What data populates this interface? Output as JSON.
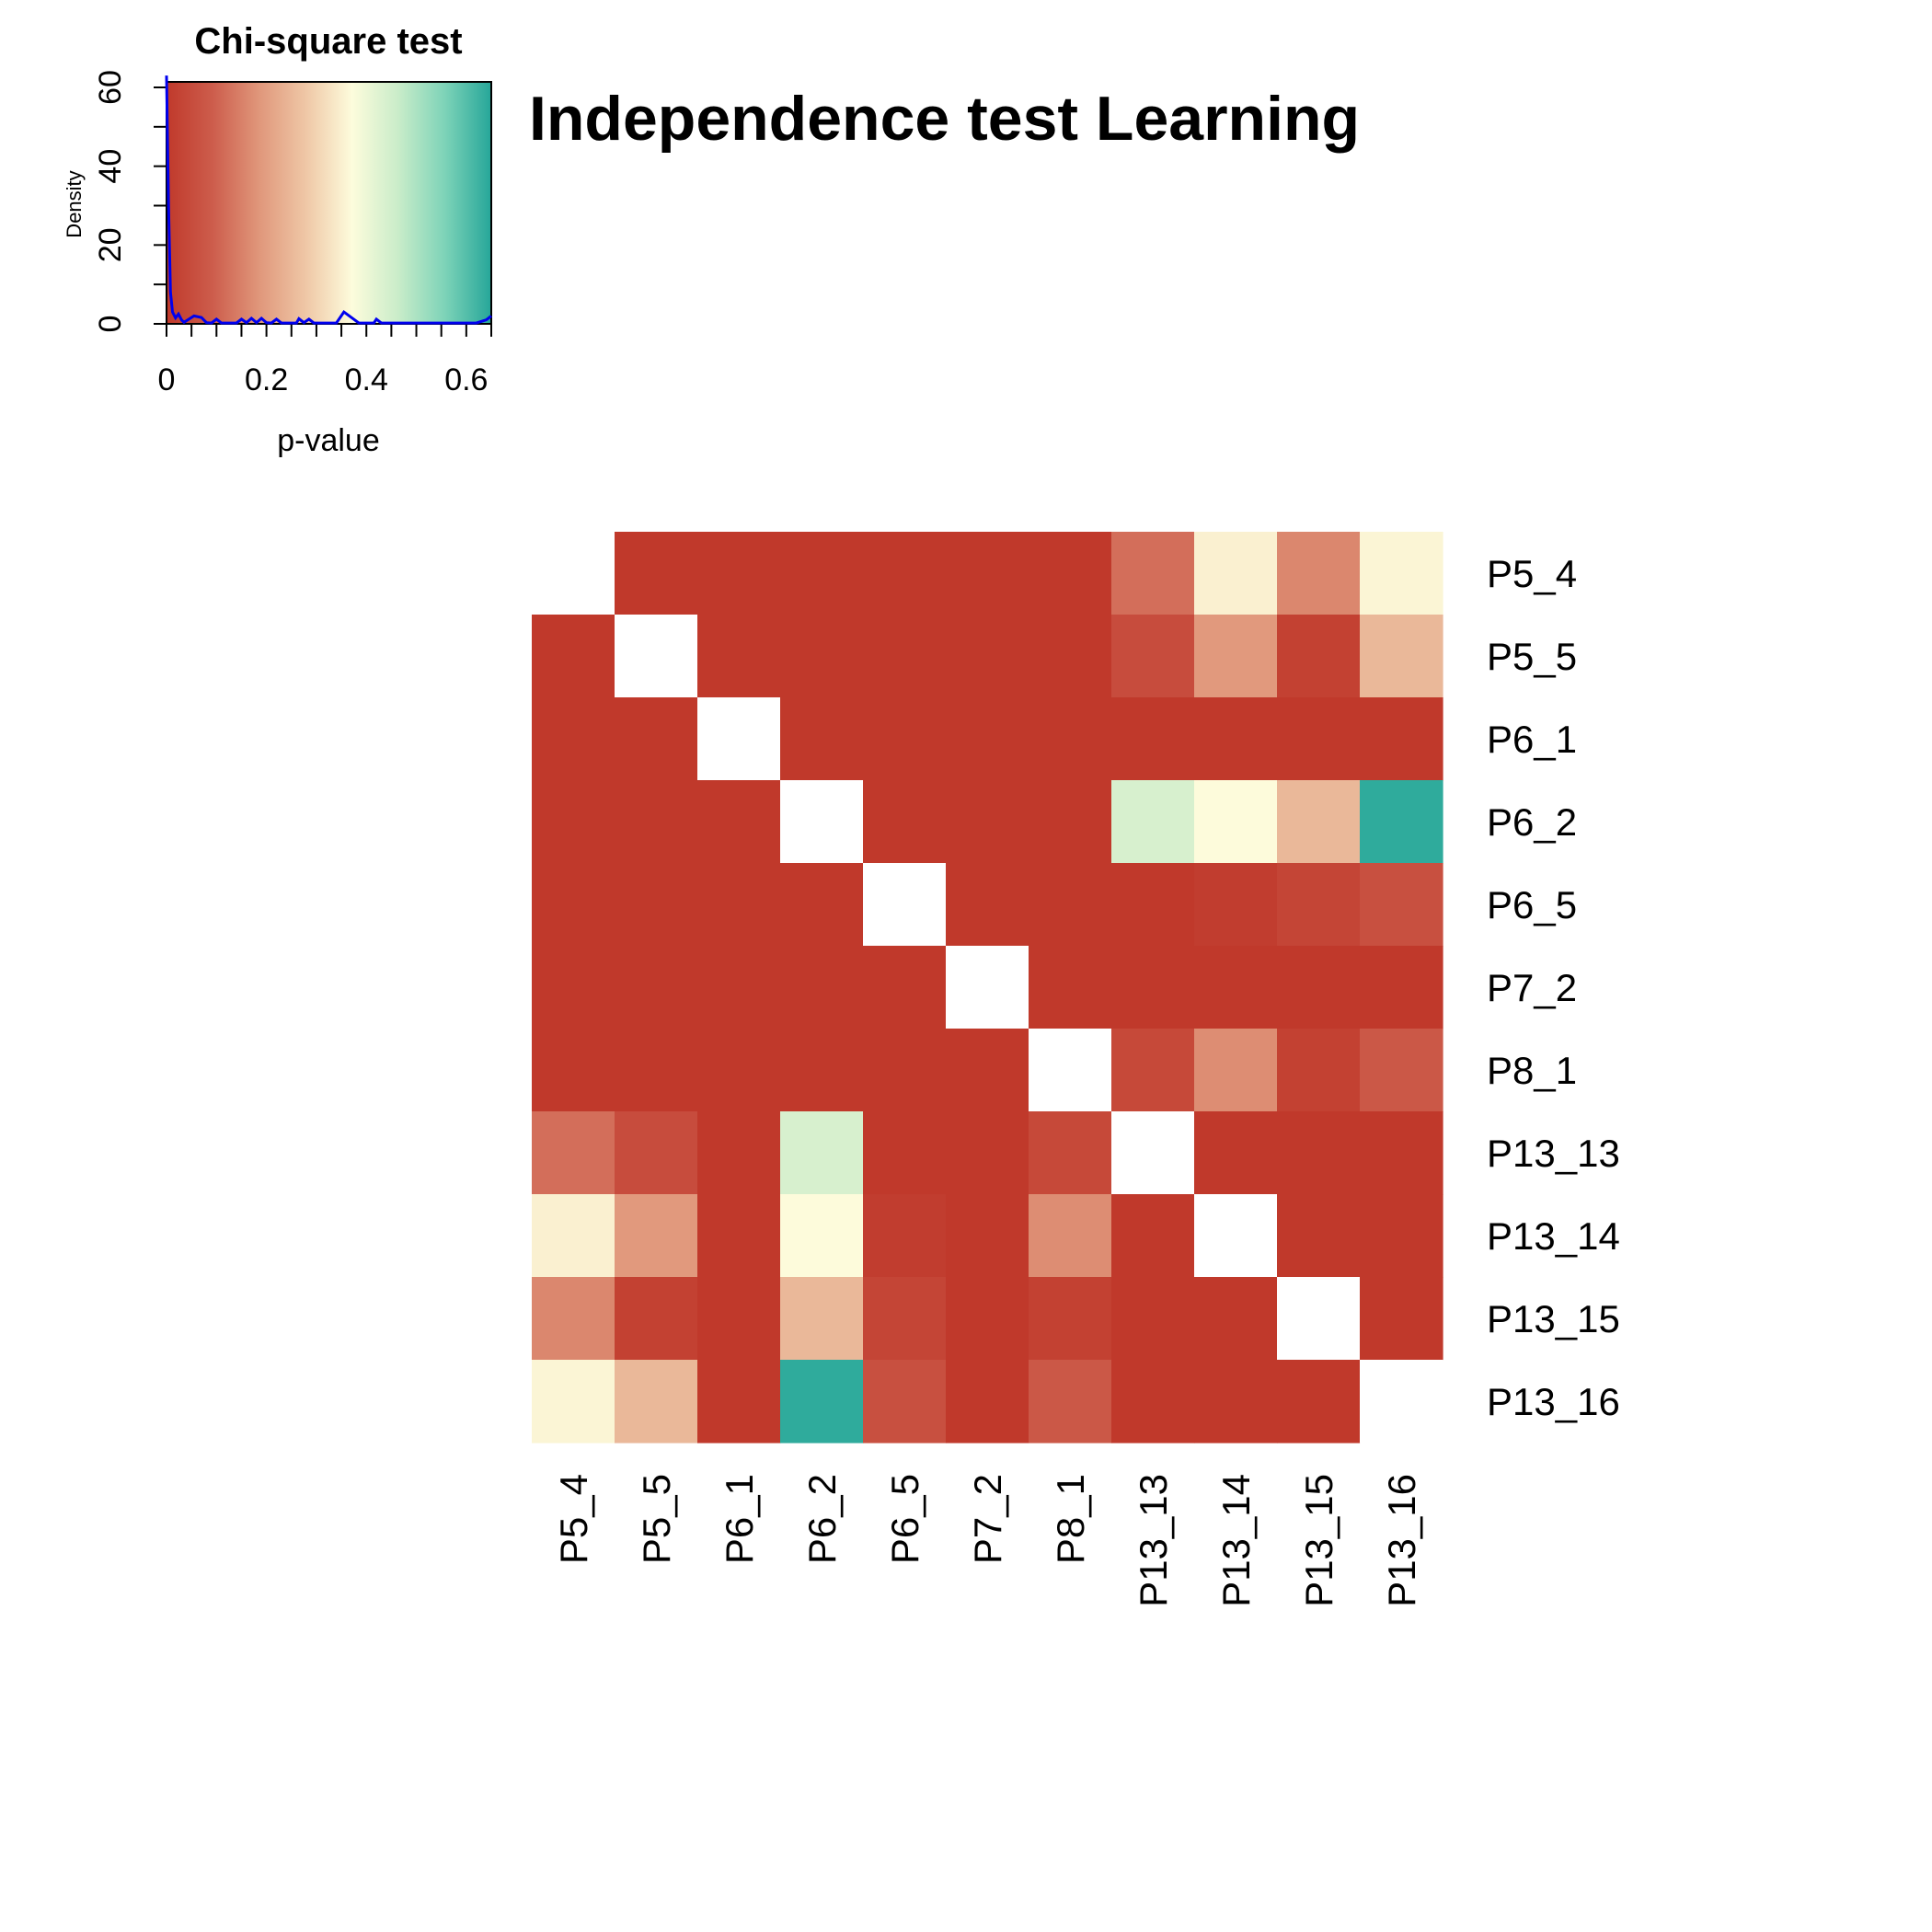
{
  "chart_data": {
    "type": "heatmap",
    "title": "Independence test Learning",
    "labels": [
      "P5_4",
      "P5_5",
      "P6_1",
      "P6_2",
      "P6_5",
      "P7_2",
      "P8_1",
      "P13_13",
      "P13_14",
      "P13_15",
      "P13_16"
    ],
    "matrix": [
      [
        null,
        0,
        0,
        0,
        0,
        0,
        0,
        0.12,
        0.35,
        0.16,
        0.36
      ],
      [
        0,
        null,
        0,
        0,
        0,
        0,
        0,
        0.05,
        0.19,
        0.02,
        0.25
      ],
      [
        0,
        0,
        null,
        0,
        0,
        0,
        0,
        0,
        0,
        0,
        0
      ],
      [
        0,
        0,
        0,
        null,
        0,
        0,
        0,
        0.44,
        0.37,
        0.25,
        0.64
      ],
      [
        0,
        0,
        0,
        0,
        null,
        0,
        0,
        0,
        0.01,
        0.03,
        0.06
      ],
      [
        0,
        0,
        0,
        0,
        0,
        null,
        0,
        0,
        0,
        0,
        0
      ],
      [
        0,
        0,
        0,
        0,
        0,
        0,
        null,
        0.04,
        0.17,
        0.02,
        0.08
      ],
      [
        0.12,
        0.05,
        0,
        0.44,
        0,
        0,
        0.04,
        null,
        0,
        0,
        0
      ],
      [
        0.35,
        0.19,
        0,
        0.37,
        0.01,
        0,
        0.17,
        0,
        null,
        0,
        0
      ],
      [
        0.16,
        0.02,
        0,
        0.25,
        0.03,
        0,
        0.02,
        0,
        0,
        null,
        0
      ],
      [
        0.36,
        0.25,
        0,
        0.64,
        0.06,
        0,
        0.08,
        0,
        0,
        0,
        null
      ]
    ],
    "color_scale": {
      "domain": [
        0,
        0.65
      ],
      "colors": [
        "#c0392b",
        "#cd5d4c",
        "#e0977b",
        "#efc7a6",
        "#fdfcdc",
        "#c9ecc9",
        "#7dd3b8",
        "#26a699"
      ]
    },
    "key": {
      "title": "Chi-square test",
      "xlabel": "p-value",
      "ylabel": "Density",
      "xlim": [
        0,
        0.65
      ],
      "ylim": [
        0,
        60
      ],
      "xticks": [
        "0",
        "0.2",
        "0.4",
        "0.6"
      ],
      "yticks": [
        "0",
        "20",
        "40",
        "60"
      ],
      "density_curve": [
        [
          0,
          63
        ],
        [
          0.004,
          30
        ],
        [
          0.008,
          8
        ],
        [
          0.012,
          3
        ],
        [
          0.018,
          1.5
        ],
        [
          0.024,
          2.5
        ],
        [
          0.03,
          1
        ],
        [
          0.035,
          0.4
        ],
        [
          0.045,
          1.2
        ],
        [
          0.055,
          2
        ],
        [
          0.07,
          1.6
        ],
        [
          0.08,
          0.3
        ],
        [
          0.09,
          0.2
        ],
        [
          0.1,
          1.2
        ],
        [
          0.11,
          0.2
        ],
        [
          0.14,
          0.2
        ],
        [
          0.15,
          1.2
        ],
        [
          0.16,
          0.3
        ],
        [
          0.17,
          1.4
        ],
        [
          0.18,
          0.3
        ],
        [
          0.19,
          1.4
        ],
        [
          0.2,
          0.3
        ],
        [
          0.21,
          0.2
        ],
        [
          0.22,
          1.2
        ],
        [
          0.23,
          0.2
        ],
        [
          0.26,
          0.2
        ],
        [
          0.265,
          1.3
        ],
        [
          0.275,
          0.3
        ],
        [
          0.285,
          1.2
        ],
        [
          0.295,
          0.2
        ],
        [
          0.34,
          0.2
        ],
        [
          0.355,
          3
        ],
        [
          0.37,
          1.6
        ],
        [
          0.385,
          0.2
        ],
        [
          0.415,
          0.2
        ],
        [
          0.42,
          1.2
        ],
        [
          0.43,
          0.2
        ],
        [
          0.62,
          0.2
        ],
        [
          0.64,
          1
        ],
        [
          0.65,
          2
        ]
      ],
      "line_color": "#0000ee"
    }
  }
}
